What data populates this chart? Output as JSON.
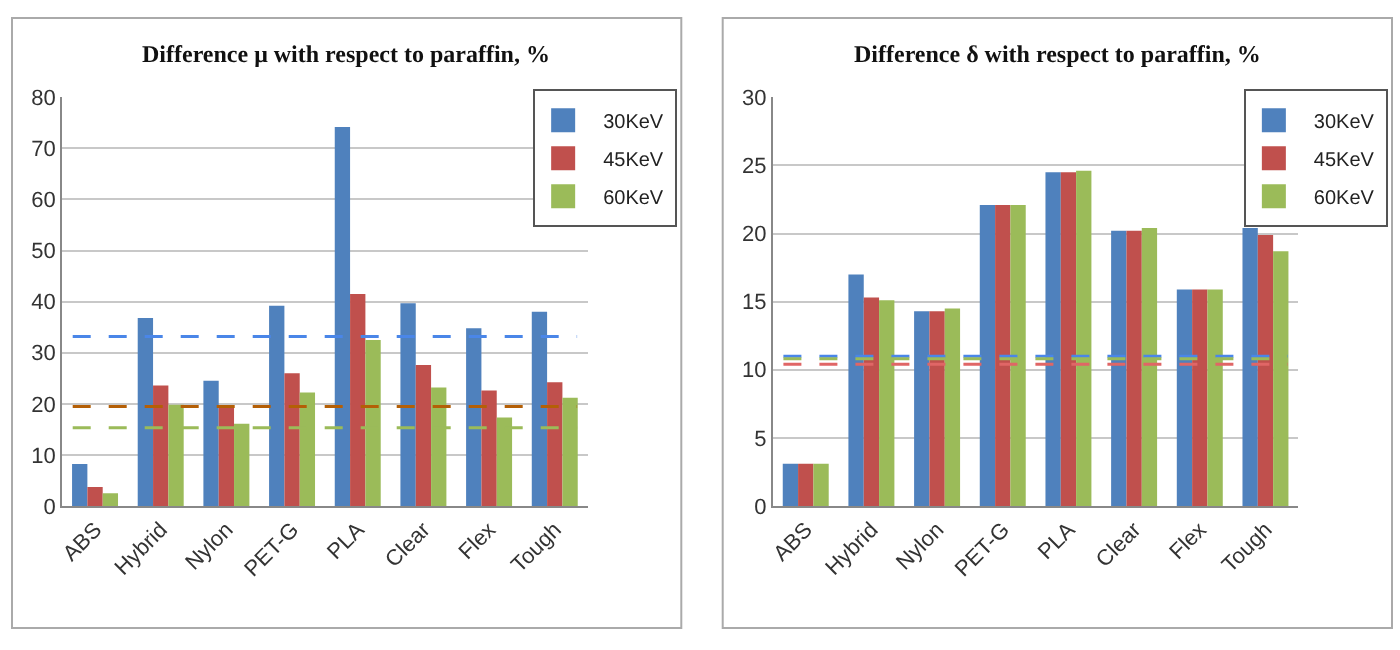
{
  "chart_data": [
    {
      "type": "bar",
      "title": "Difference μ with respect to paraffin, %",
      "categories": [
        "ABS",
        "Hybrid",
        "Nylon",
        "PET-G",
        "PLA",
        "Clear",
        "Flex",
        "Tough"
      ],
      "series": [
        {
          "name": "30KeV",
          "color": "#4f81bd",
          "values": [
            8.2,
            36.8,
            24.5,
            39.2,
            74.2,
            39.7,
            34.8,
            38.0
          ]
        },
        {
          "name": "45KeV",
          "color": "#c0504d",
          "values": [
            3.7,
            23.6,
            19.4,
            26.0,
            41.5,
            27.6,
            22.6,
            24.2
          ]
        },
        {
          "name": "60KeV",
          "color": "#9bbb59",
          "values": [
            2.5,
            19.8,
            16.1,
            22.2,
            32.5,
            23.2,
            17.3,
            21.2
          ]
        }
      ],
      "ylim": [
        0,
        80
      ],
      "yticks": [
        0,
        10,
        20,
        30,
        40,
        50,
        60,
        70,
        80
      ],
      "ref_lines": [
        {
          "axis": "y",
          "value": 33.2,
          "color": "#4a86e8",
          "line_style": "dashed"
        },
        {
          "axis": "y",
          "value": 19.5,
          "color": "#b45f06",
          "line_style": "dashed"
        },
        {
          "axis": "y",
          "value": 15.3,
          "color": "#9bbb59",
          "line_style": "dashed"
        }
      ],
      "grid": "y",
      "legend": "top right"
    },
    {
      "type": "bar",
      "title": "Difference δ with respect to paraffin, %",
      "categories": [
        "ABS",
        "Hybrid",
        "Nylon",
        "PET-G",
        "PLA",
        "Clear",
        "Flex",
        "Tough"
      ],
      "series": [
        {
          "name": "30KeV",
          "color": "#4f81bd",
          "values": [
            3.1,
            17.0,
            14.3,
            22.1,
            24.5,
            20.2,
            15.9,
            20.4
          ]
        },
        {
          "name": "45KeV",
          "color": "#c0504d",
          "values": [
            3.1,
            15.3,
            14.3,
            22.1,
            24.5,
            20.2,
            15.9,
            19.9
          ]
        },
        {
          "name": "60KeV",
          "color": "#9bbb59",
          "values": [
            3.1,
            15.1,
            14.5,
            22.1,
            24.6,
            20.4,
            15.9,
            18.7
          ]
        }
      ],
      "ylim": [
        0,
        30
      ],
      "yticks": [
        0,
        5,
        10,
        15,
        20,
        25,
        30
      ],
      "ref_lines": [
        {
          "axis": "y",
          "value": 11.0,
          "color": "#4a86e8",
          "line_style": "dashed"
        },
        {
          "axis": "y",
          "value": 10.8,
          "color": "#9bbb59",
          "line_style": "dashed"
        },
        {
          "axis": "y",
          "value": 10.4,
          "color": "#e06666",
          "line_style": "dashed"
        }
      ],
      "grid": "y",
      "legend": "top right"
    }
  ]
}
